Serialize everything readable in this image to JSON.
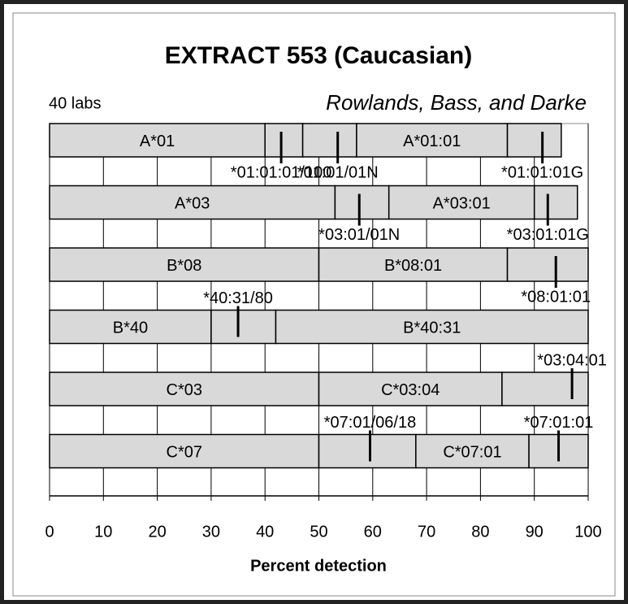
{
  "chart_data": {
    "type": "stacked-segments",
    "title": "EXTRACT 553 (Caucasian)",
    "subtitle_left": "40 labs",
    "subtitle_right": "Rowlands, Bass, and Darke",
    "x_label": "Percent detection",
    "xlim": [
      0,
      100
    ],
    "xticks": [
      0,
      10,
      20,
      30,
      40,
      50,
      60,
      70,
      80,
      90,
      100
    ],
    "grid": true,
    "color": "#d9d9d9",
    "rows": [
      {
        "segments": [
          {
            "value": 40,
            "label": "A*01"
          },
          {
            "value": 7
          },
          {
            "value": 10
          },
          {
            "value": 28,
            "label": "A*01:01"
          },
          {
            "value": 10
          }
        ],
        "markers": [
          {
            "value": 43,
            "label": "*01:01:01/100"
          },
          {
            "value": 53.5,
            "label": "*01:01/01N"
          },
          {
            "value": 91.5,
            "label": "*01:01:01G"
          }
        ]
      },
      {
        "segments": [
          {
            "value": 53,
            "label": "A*03"
          },
          {
            "value": 10
          },
          {
            "value": 27,
            "label": "A*03:01"
          },
          {
            "value": 8
          }
        ],
        "markers": [
          {
            "value": 57.5,
            "label": "*03:01/01N"
          },
          {
            "value": 92.5,
            "label": "*03:01:01G"
          }
        ]
      },
      {
        "segments": [
          {
            "value": 50,
            "label": "B*08"
          },
          {
            "value": 35,
            "label": "B*08:01"
          },
          {
            "value": 15
          }
        ],
        "markers": [
          {
            "value": 94,
            "label": "*08:01:01"
          }
        ]
      },
      {
        "segments": [
          {
            "value": 30,
            "label": "B*40"
          },
          {
            "value": 12
          },
          {
            "value": 58,
            "label": "B*40:31"
          }
        ],
        "markers": [
          {
            "value": 35,
            "label": "*40:31/80"
          }
        ]
      },
      {
        "segments": [
          {
            "value": 50,
            "label": "C*03"
          },
          {
            "value": 34,
            "label": "C*03:04"
          },
          {
            "value": 16
          }
        ],
        "markers": [
          {
            "value": 97,
            "label": "*03:04:01"
          }
        ]
      },
      {
        "segments": [
          {
            "value": 50,
            "label": "C*07"
          },
          {
            "value": 18
          },
          {
            "value": 21,
            "label": "C*07:01"
          },
          {
            "value": 11
          }
        ],
        "markers": [
          {
            "value": 59.5,
            "label": "*07:01/06/18"
          },
          {
            "value": 94.5,
            "label": "*07:01:01"
          }
        ]
      }
    ]
  }
}
